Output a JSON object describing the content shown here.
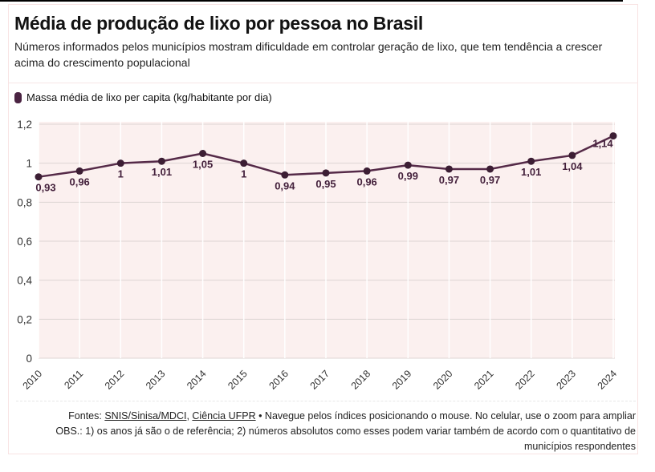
{
  "header": {
    "title": "Média de produção de lixo por pessoa no Brasil",
    "subtitle": "Números informados pelos municípios mostram dificuldade em controlar geração de lixo, que tem tendência a crescer acima do crescimento populacional"
  },
  "legend": {
    "label": "Massa média de lixo per capita (kg/habitante por dia)",
    "marker_color": "#4a2342"
  },
  "chart_data": {
    "type": "line",
    "title": "Média de produção de lixo por pessoa no Brasil",
    "categories": [
      "2010",
      "2011",
      "2012",
      "2013",
      "2014",
      "2015",
      "2016",
      "2017",
      "2018",
      "2019",
      "2020",
      "2021",
      "2022",
      "2023",
      "2024"
    ],
    "series": [
      {
        "name": "Massa média de lixo per capita (kg/habitante por dia)",
        "values": [
          0.93,
          0.96,
          1,
          1.01,
          1.05,
          1,
          0.94,
          0.95,
          0.96,
          0.99,
          0.97,
          0.97,
          1.01,
          1.04,
          1.14
        ]
      }
    ],
    "point_labels": [
      "0,93",
      "0,96",
      "1",
      "1,01",
      "1,05",
      "1",
      "0,94",
      "0,95",
      "0,96",
      "0,99",
      "0,97",
      "0,97",
      "1,01",
      "1,04",
      "1,14"
    ],
    "xlabel": "",
    "ylabel": "kg/habitante por dia",
    "ylim": [
      0,
      1.2
    ],
    "ytick_values": [
      0,
      0.2,
      0.4,
      0.6,
      0.8,
      1,
      1.2
    ],
    "ytick_labels": [
      "0",
      "0,2",
      "0,4",
      "0,6",
      "0,8",
      "1",
      "1,2"
    ],
    "grid": true,
    "legend_position": "top-left",
    "colors": {
      "line": "#552a48",
      "point": "#3c1e34",
      "point_label": "#44213c",
      "plot_background": "#fbf0ef",
      "grid_horizontal": "#ddd4d3",
      "grid_vertical": "#ffffff",
      "axis_text": "#333333"
    }
  },
  "footer": {
    "sources_prefix": "Fontes: ",
    "source_link_1": "SNIS/Sinisa/MDCI",
    "sources_comma": ", ",
    "source_link_2": "Ciência UFPR",
    "nav_note": " • Navegue pelos índices posicionando o mouse. No celular, use o zoom para ampliar",
    "obs_note": "OBS.: 1) os anos já são o de referência; 2) números absolutos como esses podem variar também de acordo com o quantitativo de municípios respondentes"
  }
}
